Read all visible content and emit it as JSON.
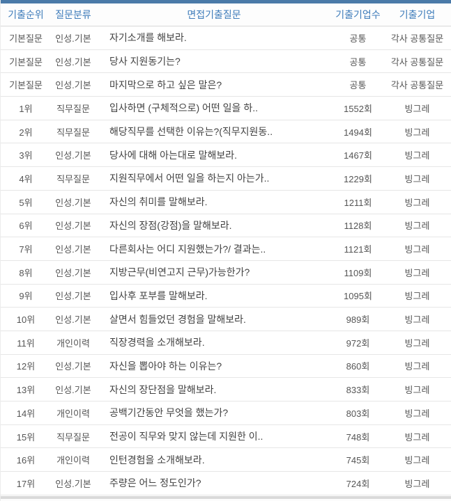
{
  "colors": {
    "accent_bar": "#4a7aa8",
    "header_text": "#3e7cba",
    "body_text": "#424242",
    "muted_text": "#555555",
    "row_border": "#e6e6e6",
    "scrollbar": "#d9d9d9"
  },
  "table": {
    "columns": [
      {
        "label": "기출순위"
      },
      {
        "label": "질문분류"
      },
      {
        "label": "면접기출질문"
      },
      {
        "label": "기출기업수"
      },
      {
        "label": "기출기업"
      }
    ],
    "rows": [
      {
        "rank": "기본질문",
        "category": "인성.기본",
        "question": "자기소개를 해보라.",
        "count": "공통",
        "company": "각사 공통질문"
      },
      {
        "rank": "기본질문",
        "category": "인성.기본",
        "question": "당사 지원동기는?",
        "count": "공통",
        "company": "각사 공통질문"
      },
      {
        "rank": "기본질문",
        "category": "인성.기본",
        "question": "마지막으로 하고 싶은 말은?",
        "count": "공통",
        "company": "각사 공통질문"
      },
      {
        "rank": "1위",
        "category": "직무질문",
        "question": "입사하면 (구체적으로) 어떤 일을 하..",
        "count": "1552회",
        "company": "빙그레"
      },
      {
        "rank": "2위",
        "category": "직무질문",
        "question": "해당직무를 선택한 이유는?(직무지원동..",
        "count": "1494회",
        "company": "빙그레"
      },
      {
        "rank": "3위",
        "category": "인성.기본",
        "question": "당사에 대해 아는대로 말해보라.",
        "count": "1467회",
        "company": "빙그레"
      },
      {
        "rank": "4위",
        "category": "직무질문",
        "question": "지원직무에서 어떤 일을 하는지 아는가..",
        "count": "1229회",
        "company": "빙그레"
      },
      {
        "rank": "5위",
        "category": "인성.기본",
        "question": "자신의 취미를 말해보라.",
        "count": "1211회",
        "company": "빙그레"
      },
      {
        "rank": "6위",
        "category": "인성.기본",
        "question": "자신의 장점(강점)을 말해보라.",
        "count": "1128회",
        "company": "빙그레"
      },
      {
        "rank": "7위",
        "category": "인성.기본",
        "question": "다른회사는 어디 지원했는가?/ 결과는..",
        "count": "1121회",
        "company": "빙그레"
      },
      {
        "rank": "8위",
        "category": "인성.기본",
        "question": "지방근무(비연고지 근무)가능한가?",
        "count": "1109회",
        "company": "빙그레"
      },
      {
        "rank": "9위",
        "category": "인성.기본",
        "question": "입사후 포부를 말해보라.",
        "count": "1095회",
        "company": "빙그레"
      },
      {
        "rank": "10위",
        "category": "인성.기본",
        "question": "살면서 힘들었던 경험을 말해보라.",
        "count": "989회",
        "company": "빙그레"
      },
      {
        "rank": "11위",
        "category": "개인이력",
        "question": "직장경력을 소개해보라.",
        "count": "972회",
        "company": "빙그레"
      },
      {
        "rank": "12위",
        "category": "인성.기본",
        "question": "자신을 뽑아야 하는 이유는?",
        "count": "860회",
        "company": "빙그레"
      },
      {
        "rank": "13위",
        "category": "인성.기본",
        "question": "자신의 장단점을 말해보라.",
        "count": "833회",
        "company": "빙그레"
      },
      {
        "rank": "14위",
        "category": "개인이력",
        "question": "공백기간동안 무엇을 했는가?",
        "count": "803회",
        "company": "빙그레"
      },
      {
        "rank": "15위",
        "category": "직무질문",
        "question": "전공이 직무와 맞지 않는데 지원한 이..",
        "count": "748회",
        "company": "빙그레"
      },
      {
        "rank": "16위",
        "category": "개인이력",
        "question": "인턴경험을 소개해보라.",
        "count": "745회",
        "company": "빙그레"
      },
      {
        "rank": "17위",
        "category": "인성.기본",
        "question": "주량은 어느 정도인가?",
        "count": "724회",
        "company": "빙그레"
      }
    ]
  }
}
